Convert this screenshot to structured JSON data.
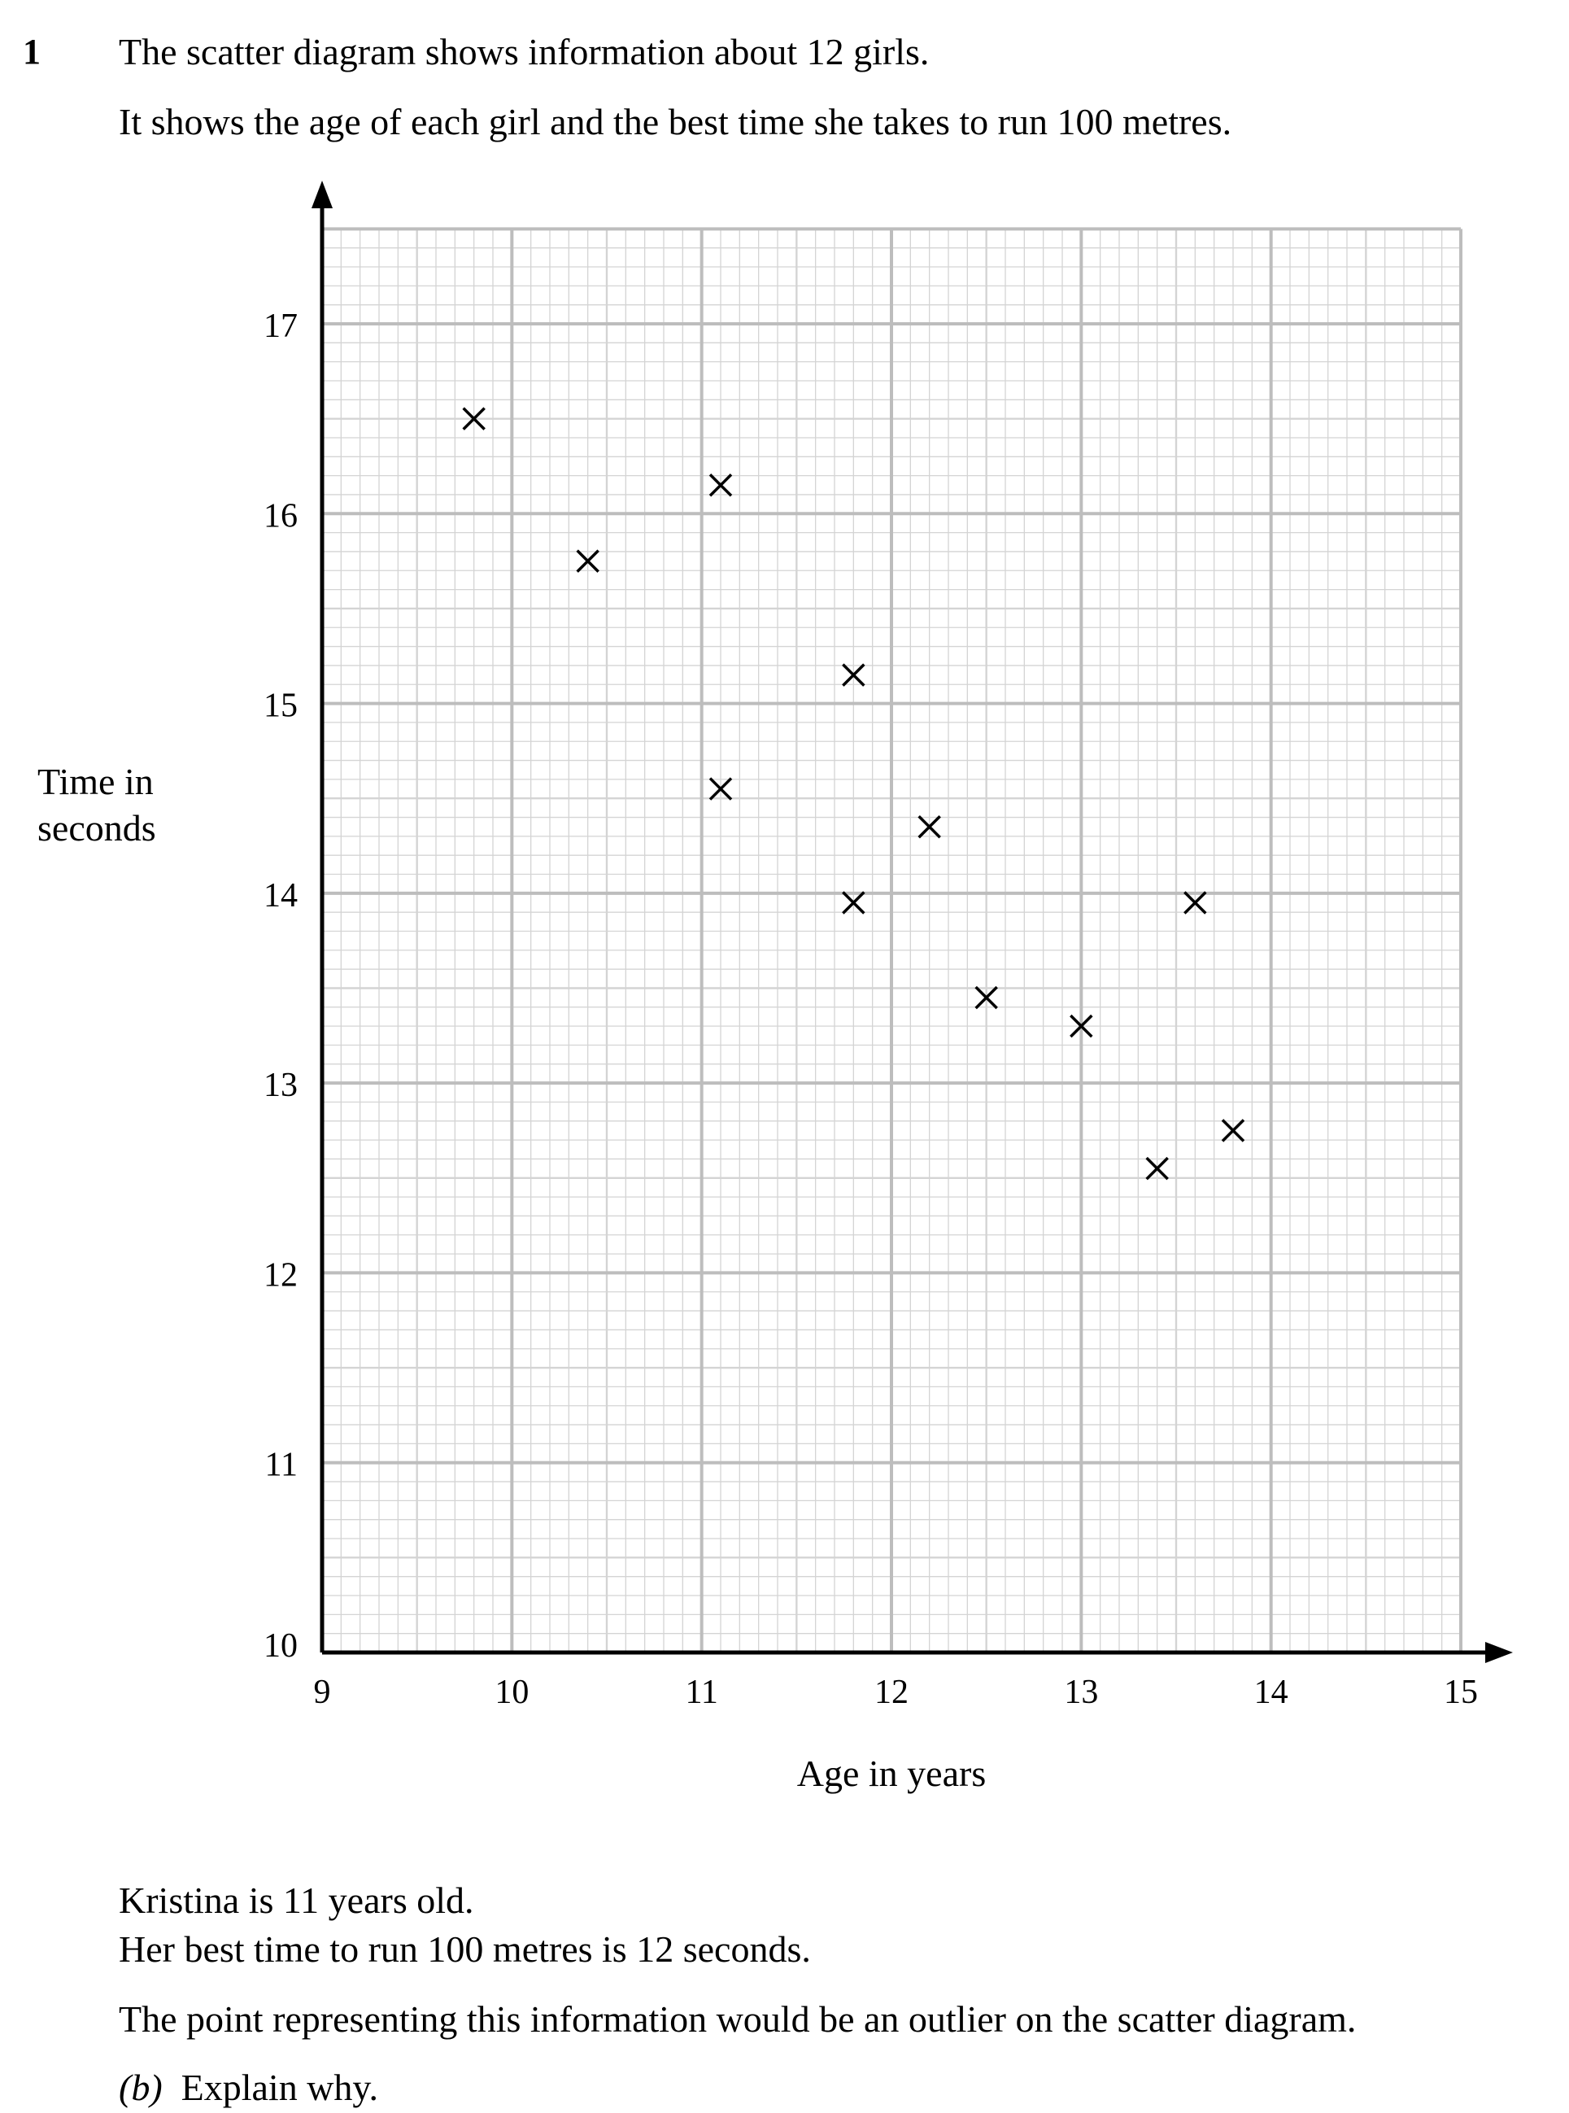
{
  "question": {
    "number": "1",
    "intro_line_1": "The scatter diagram shows information about 12 girls.",
    "intro_line_2": "It shows the age of each girl and the best time she takes to run 100 metres.",
    "info_line_1": "Kristina is 11 years old.",
    "info_line_2": "Her best time to run 100 metres is 12 seconds.",
    "info_line_3": "The point representing this information would be an outlier on the scatter diagram.",
    "part_label": "(b)",
    "part_text": "Explain why."
  },
  "chart_data": {
    "type": "scatter",
    "xlabel": "Age in years",
    "ylabel_line_1": "Time in",
    "ylabel_line_2": "seconds",
    "xlim": [
      9,
      15
    ],
    "ylim": [
      10,
      17.5
    ],
    "x_ticks": [
      9,
      10,
      11,
      12,
      13,
      14,
      15
    ],
    "y_ticks": [
      10,
      11,
      12,
      13,
      14,
      15,
      16,
      17
    ],
    "grid": true,
    "marker": "cross",
    "colors": {
      "grid_minor": "#d4d4d4",
      "grid_major": "#bdbdbd",
      "axis": "#000000",
      "marker": "#000000"
    },
    "points": [
      {
        "x": 9.8,
        "y": 16.5
      },
      {
        "x": 10.4,
        "y": 15.75
      },
      {
        "x": 11.1,
        "y": 16.15
      },
      {
        "x": 11.1,
        "y": 14.55
      },
      {
        "x": 11.8,
        "y": 15.15
      },
      {
        "x": 11.8,
        "y": 13.95
      },
      {
        "x": 12.2,
        "y": 14.35
      },
      {
        "x": 12.5,
        "y": 13.45
      },
      {
        "x": 13.0,
        "y": 13.3
      },
      {
        "x": 13.4,
        "y": 12.55
      },
      {
        "x": 13.6,
        "y": 13.95
      },
      {
        "x": 13.8,
        "y": 12.75
      }
    ]
  }
}
